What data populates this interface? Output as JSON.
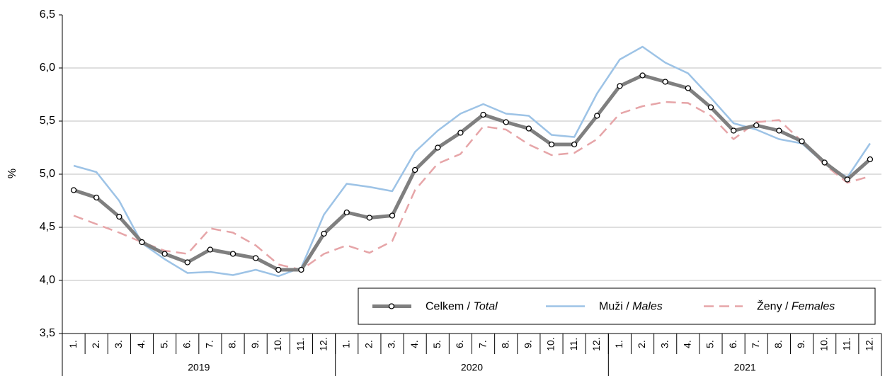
{
  "chart_data": {
    "type": "line",
    "y_label": "%",
    "categories": [
      "1.",
      "2.",
      "3.",
      "4.",
      "5.",
      "6.",
      "7.",
      "8.",
      "9.",
      "10.",
      "11.",
      "12.",
      "1.",
      "2.",
      "3.",
      "4.",
      "5.",
      "6.",
      "7.",
      "8.",
      "9.",
      "10.",
      "11.",
      "12.",
      "1.",
      "2.",
      "3.",
      "4.",
      "5.",
      "6.",
      "7.",
      "8.",
      "9.",
      "10.",
      "11.",
      "12."
    ],
    "groups": [
      "2019",
      "2020",
      "2021"
    ],
    "ylim": [
      3.5,
      6.5
    ],
    "yticks": [
      {
        "value": 3.5,
        "label": "3,5"
      },
      {
        "value": 4.0,
        "label": "4,0"
      },
      {
        "value": 4.5,
        "label": "4,5"
      },
      {
        "value": 5.0,
        "label": "5,0"
      },
      {
        "value": 5.5,
        "label": "5,5"
      },
      {
        "value": 6.0,
        "label": "6,0"
      },
      {
        "value": 6.5,
        "label": "6,5"
      }
    ],
    "grid": true,
    "legend": "lower right",
    "series": [
      {
        "name": "Celkem / Total",
        "color": "#7f7f7f",
        "markers": true,
        "dash": false,
        "values": [
          4.85,
          4.78,
          4.6,
          4.36,
          4.25,
          4.17,
          4.29,
          4.25,
          4.21,
          4.1,
          4.1,
          4.44,
          4.64,
          4.59,
          4.61,
          5.04,
          5.25,
          5.39,
          5.56,
          5.49,
          5.43,
          5.28,
          5.28,
          5.55,
          5.83,
          5.93,
          5.87,
          5.81,
          5.63,
          5.41,
          5.46,
          5.41,
          5.31,
          5.11,
          4.95,
          5.14
        ]
      },
      {
        "name": "Muži / Males",
        "color": "#9dc3e6",
        "markers": false,
        "dash": false,
        "values": [
          5.08,
          5.02,
          4.75,
          4.35,
          4.2,
          4.07,
          4.08,
          4.05,
          4.1,
          4.04,
          4.12,
          4.62,
          4.91,
          4.88,
          4.84,
          5.21,
          5.41,
          5.57,
          5.66,
          5.57,
          5.55,
          5.37,
          5.35,
          5.76,
          6.08,
          6.2,
          6.05,
          5.95,
          5.72,
          5.48,
          5.42,
          5.33,
          5.29,
          5.1,
          4.97,
          5.29
        ]
      },
      {
        "name": "Ženy / Females",
        "color": "#e6a5a8",
        "markers": false,
        "dash": true,
        "values": [
          4.61,
          4.53,
          4.45,
          4.36,
          4.28,
          4.25,
          4.49,
          4.45,
          4.33,
          4.15,
          4.1,
          4.25,
          4.33,
          4.26,
          4.37,
          4.85,
          5.1,
          5.19,
          5.45,
          5.42,
          5.28,
          5.18,
          5.2,
          5.33,
          5.57,
          5.64,
          5.68,
          5.67,
          5.55,
          5.33,
          5.49,
          5.51,
          5.31,
          5.09,
          4.92,
          4.98
        ]
      }
    ]
  }
}
